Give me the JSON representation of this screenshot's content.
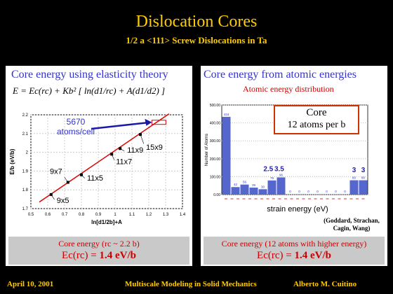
{
  "header": {
    "title": "Dislocation Cores",
    "subtitle": "1/2 a <111> Screw Dislocations in Ta"
  },
  "left_panel": {
    "title": "Core energy using elasticity theory",
    "formula": "E = Ec(rc) + Kb² [ ln(d1/rc) + A(d1/d2) ]",
    "annotation_value": "5670",
    "annotation_unit": "atoms/cell",
    "ylabel": "E/b  (eV/b)",
    "xlabel": "ln[d1/2b]+A",
    "summary_line1": "Core energy (rc ~ 2.2 b)",
    "summary_line2_prefix": "Ec(rc) = ",
    "summary_line2_value": "1.4 eV/b"
  },
  "right_panel": {
    "title": "Core energy from atomic energies",
    "subtitle": "Atomic energy distribution",
    "core_label": "Core",
    "core_detail": "12 atoms per b",
    "ylabel": "Number of Atoms",
    "xlabel": "strain energy (eV)",
    "citation": "(Goddard, Strachan, Cagin, Wang)",
    "summary_line1": "Core energy (12 atoms with higher energy)",
    "summary_line2_prefix": "Ec(rc) = ",
    "summary_line2_value": "1.4 eV/b"
  },
  "footer": {
    "date": "April 10, 2001",
    "center": "Multiscale Modeling in Solid Mechanics",
    "author": "Alberto M. Cuitino"
  },
  "colors": {
    "accent_yellow": "#ffcc00",
    "title_blue": "#3333cc",
    "highlight_red": "#cc0000",
    "bar_blue": "#5566cc"
  },
  "chart_data": [
    {
      "type": "scatter",
      "xlabel": "ln[d1/2b]+A",
      "ylabel": "E/b  (eV/b)",
      "xlim": [
        0.5,
        1.4
      ],
      "ylim": [
        1.7,
        2.2
      ],
      "xticks": [
        "0.5",
        "0.6",
        "0.7",
        "0.8",
        "0.9",
        "1",
        "1.1",
        "1.2",
        "1.3",
        "1.4"
      ],
      "yticks": [
        "1.7",
        "1.8",
        "1.9",
        "2",
        "2.1",
        "2.2"
      ],
      "points": [
        {
          "label": "9x5",
          "x": 0.62,
          "y": 1.775
        },
        {
          "label": "9x7",
          "x": 0.72,
          "y": 1.84
        },
        {
          "label": "11x5",
          "x": 0.8,
          "y": 1.88
        },
        {
          "label": "11x7",
          "x": 0.98,
          "y": 1.99
        },
        {
          "label": "11x9",
          "x": 1.03,
          "y": 2.02
        },
        {
          "label": "15x9",
          "x": 1.15,
          "y": 2.095
        }
      ],
      "fit_line": {
        "x": [
          0.55,
          1.32
        ],
        "y": [
          1.735,
          2.205
        ]
      }
    },
    {
      "type": "bar",
      "xlabel": "strain energy (eV)",
      "ylabel": "Number of Atoms",
      "ylim": [
        0,
        500
      ],
      "yticks": [
        "0.00",
        "100.00",
        "200.00",
        "300.00",
        "400.00",
        "500.00"
      ],
      "values": [
        434,
        42,
        56,
        39,
        30,
        79,
        96,
        0,
        0,
        0,
        0,
        0,
        0,
        0,
        80,
        80
      ],
      "bar_labels": [
        "434",
        "42",
        "56",
        "39",
        "30",
        "79",
        "96",
        "0",
        "0",
        "0",
        "0",
        "0",
        "0",
        "0",
        "80",
        "80"
      ],
      "overlay_labels": [
        "2.5",
        "3.5",
        "3",
        "3"
      ]
    }
  ]
}
